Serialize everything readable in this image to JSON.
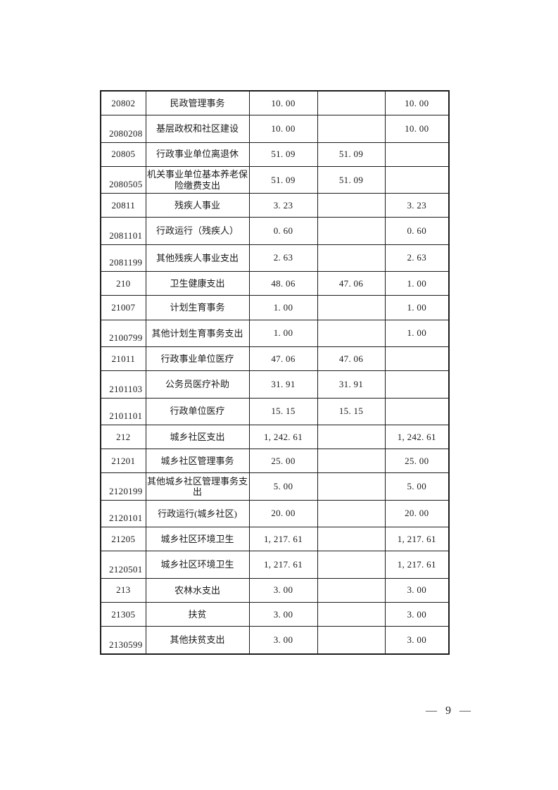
{
  "page": {
    "background_color": "#ffffff",
    "border_color": "#1c1c1c",
    "text_color": "#1a1a1a",
    "number_label": "— 9 —"
  },
  "table": {
    "columns": [
      "code",
      "name",
      "value1",
      "value2",
      "value3"
    ],
    "rows": [
      {
        "code": "20802",
        "code_bottom": false,
        "name": "民政管理事务",
        "values": [
          "10. 00",
          "",
          "10. 00"
        ]
      },
      {
        "code": "2080208",
        "code_bottom": true,
        "name": "基层政权和社区建设",
        "values": [
          "10. 00",
          "",
          "10. 00"
        ]
      },
      {
        "code": "20805",
        "code_bottom": false,
        "name": "行政事业单位离退休",
        "values": [
          "51. 09",
          "51. 09",
          ""
        ]
      },
      {
        "code": "2080505",
        "code_bottom": true,
        "name": "机关事业单位基本养老保险缴费支出",
        "values": [
          "51. 09",
          "51. 09",
          ""
        ]
      },
      {
        "code": "20811",
        "code_bottom": false,
        "name": "残疾人事业",
        "values": [
          "3. 23",
          "",
          "3. 23"
        ]
      },
      {
        "code": "2081101",
        "code_bottom": true,
        "name": "行政运行（残疾人）",
        "values": [
          "0. 60",
          "",
          "0. 60"
        ]
      },
      {
        "code": "2081199",
        "code_bottom": true,
        "name": "其他残疾人事业支出",
        "values": [
          "2. 63",
          "",
          "2. 63"
        ]
      },
      {
        "code": "210",
        "code_bottom": false,
        "name": "卫生健康支出",
        "values": [
          "48. 06",
          "47. 06",
          "1. 00"
        ]
      },
      {
        "code": "21007",
        "code_bottom": false,
        "name": "计划生育事务",
        "values": [
          "1. 00",
          "",
          "1. 00"
        ]
      },
      {
        "code": "2100799",
        "code_bottom": true,
        "name": "其他计划生育事务支出",
        "values": [
          "1. 00",
          "",
          "1. 00"
        ]
      },
      {
        "code": "21011",
        "code_bottom": false,
        "name": "行政事业单位医疗",
        "values": [
          "47. 06",
          "47. 06",
          ""
        ]
      },
      {
        "code": "2101103",
        "code_bottom": true,
        "name": "公务员医疗补助",
        "values": [
          "31. 91",
          "31. 91",
          ""
        ]
      },
      {
        "code": "2101101",
        "code_bottom": true,
        "name": "行政单位医疗",
        "values": [
          "15. 15",
          "15. 15",
          ""
        ]
      },
      {
        "code": "212",
        "code_bottom": false,
        "name": "城乡社区支出",
        "values": [
          "1, 242. 61",
          "",
          "1, 242. 61"
        ]
      },
      {
        "code": "21201",
        "code_bottom": false,
        "name": "城乡社区管理事务",
        "values": [
          "25. 00",
          "",
          "25. 00"
        ]
      },
      {
        "code": "2120199",
        "code_bottom": true,
        "name": "其他城乡社区管理事务支出",
        "values": [
          "5. 00",
          "",
          "5. 00"
        ]
      },
      {
        "code": "2120101",
        "code_bottom": true,
        "name": "行政运行(城乡社区)",
        "values": [
          "20. 00",
          "",
          "20. 00"
        ]
      },
      {
        "code": "21205",
        "code_bottom": false,
        "name": "城乡社区环境卫生",
        "values": [
          "1, 217. 61",
          "",
          "1, 217. 61"
        ]
      },
      {
        "code": "2120501",
        "code_bottom": true,
        "name": "城乡社区环境卫生",
        "values": [
          "1, 217. 61",
          "",
          "1, 217. 61"
        ]
      },
      {
        "code": "213",
        "code_bottom": false,
        "name": "农林水支出",
        "values": [
          "3. 00",
          "",
          "3. 00"
        ]
      },
      {
        "code": "21305",
        "code_bottom": false,
        "name": "扶贫",
        "values": [
          "3. 00",
          "",
          "3. 00"
        ]
      },
      {
        "code": "2130599",
        "code_bottom": true,
        "name": "其他扶贫支出",
        "values": [
          "3. 00",
          "",
          "3. 00"
        ]
      }
    ]
  }
}
